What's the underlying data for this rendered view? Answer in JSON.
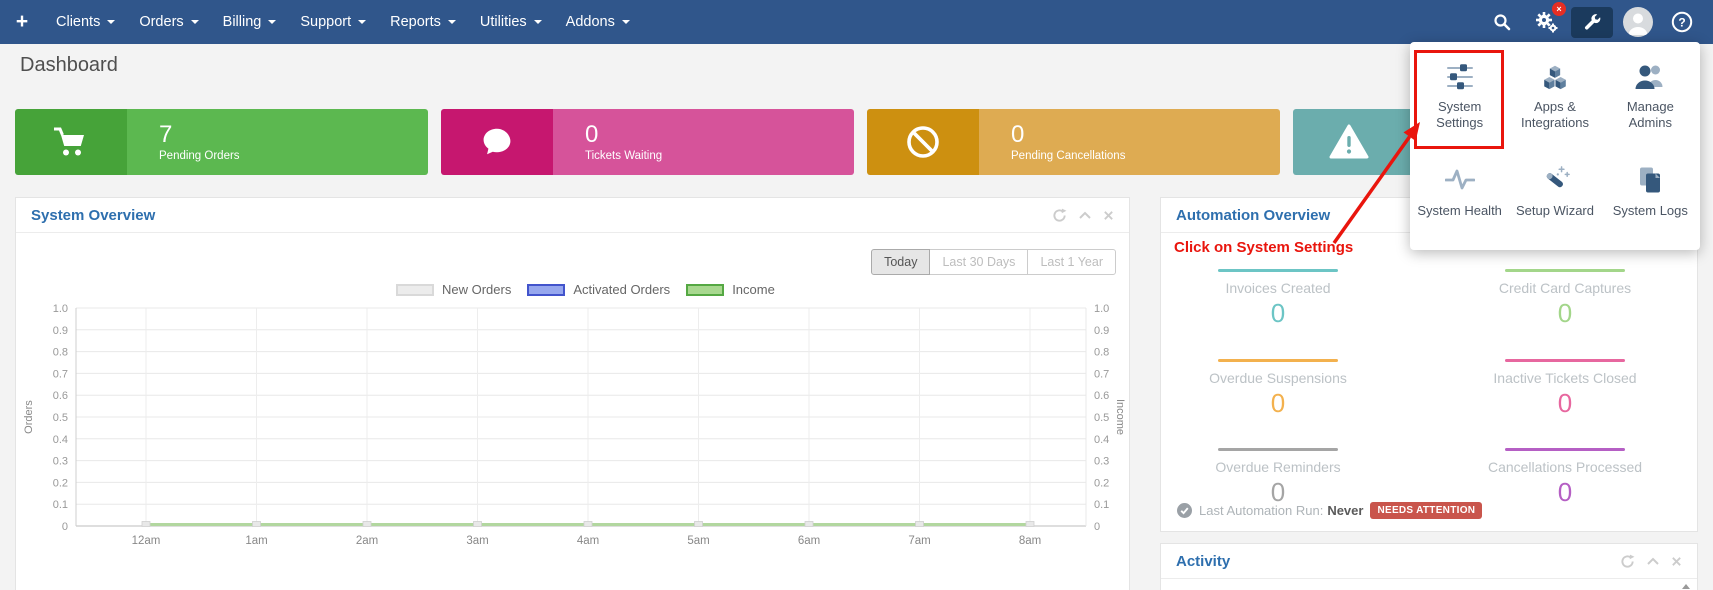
{
  "navbar": {
    "plus_label": "+",
    "items": [
      {
        "label": "Clients"
      },
      {
        "label": "Orders"
      },
      {
        "label": "Billing"
      },
      {
        "label": "Support"
      },
      {
        "label": "Reports"
      },
      {
        "label": "Utilities"
      },
      {
        "label": "Addons"
      }
    ],
    "icons": [
      "search-icon",
      "gears-error-icon",
      "wrench-icon",
      "user-avatar",
      "help-icon"
    ],
    "colors": {
      "bar": "#30568b",
      "active_item_bg": "#1b3a5d",
      "error_badge": "#e62e24"
    }
  },
  "page": {
    "title": "Dashboard"
  },
  "stat_cards": [
    {
      "icon": "shopping-cart-icon",
      "value": "7",
      "label": "Pending Orders",
      "color_dark": "#46a339",
      "color_light": "#5cb850"
    },
    {
      "icon": "comment-icon",
      "value": "0",
      "label": "Tickets Waiting",
      "color_dark": "#c6176f",
      "color_light": "#d6539a"
    },
    {
      "icon": "ban-icon",
      "value": "0",
      "label": "Pending Cancellations",
      "color_dark": "#cd9010",
      "color_light": "#deab52"
    },
    {
      "icon": "warning-triangle-icon",
      "value": "",
      "label": "",
      "color_dark": "#6badad",
      "color_light": "#6badad"
    }
  ],
  "system_overview": {
    "title": "System Overview",
    "active_range": "Today",
    "range_buttons": [
      {
        "label": "Today"
      },
      {
        "label": "Last 30 Days"
      },
      {
        "label": "Last 1 Year"
      }
    ]
  },
  "chart_data": {
    "type": "line",
    "title": "System Overview",
    "x_labels": [
      "12am",
      "1am",
      "2am",
      "3am",
      "4am",
      "5am",
      "6am",
      "7am",
      "8am"
    ],
    "series": [
      {
        "name": "New Orders",
        "values": [
          0,
          0,
          0,
          0,
          0,
          0,
          0,
          0,
          0
        ],
        "fill": "#ececec",
        "border": "#d9d9d9",
        "line": "#e3e3e3"
      },
      {
        "name": "Activated Orders",
        "values": [
          0,
          0,
          0,
          0,
          0,
          0,
          0,
          0,
          0
        ],
        "fill": "#96a7ee",
        "border": "#4254cc",
        "line": "#9dabea"
      },
      {
        "name": "Income",
        "values": [
          0,
          0,
          0,
          0,
          0,
          0,
          0,
          0,
          0
        ],
        "fill": "#a8d88f",
        "border": "#55a843",
        "line": "#b2d79f"
      }
    ],
    "ylim": [
      0,
      1
    ],
    "ytick_step": 0.1,
    "yticks_top_down": [
      "1.0",
      "0.9",
      "0.8",
      "0.7",
      "0.6",
      "0.5",
      "0.4",
      "0.3",
      "0.2",
      "0.1",
      "0"
    ],
    "left_axis_label": "Orders",
    "right_axis_label": "Income",
    "grid": true,
    "legend_position": "top"
  },
  "automation_overview": {
    "title": "Automation Overview",
    "stats": [
      {
        "label": "Invoices Created",
        "value": "0",
        "color": "#6cc5c5"
      },
      {
        "label": "Credit Card Captures",
        "value": "0",
        "color": "#a3d68a"
      },
      {
        "label": "Overdue Suspensions",
        "value": "0",
        "color": "#f3b14e"
      },
      {
        "label": "Inactive Tickets Closed",
        "value": "0",
        "color": "#e7679f"
      },
      {
        "label": "Overdue Reminders",
        "value": "0",
        "color": "#a5a5a5"
      },
      {
        "label": "Cancellations Processed",
        "value": "0",
        "color": "#b55fc4"
      }
    ],
    "last_run_label": "Last Automation Run:",
    "last_run_value": "Never",
    "badge": "NEEDS ATTENTION",
    "badge_color": "#c9554c"
  },
  "activity": {
    "title": "Activity"
  },
  "tools_menu": {
    "items": [
      {
        "label": "System Settings",
        "icon": "sliders-icon"
      },
      {
        "label": "Apps & Integrations",
        "icon": "cubes-icon"
      },
      {
        "label": "Manage Admins",
        "icon": "admins-icon"
      },
      {
        "label": "System Health",
        "icon": "heartbeat-icon"
      },
      {
        "label": "Setup Wizard",
        "icon": "magic-wand-icon"
      },
      {
        "label": "System Logs",
        "icon": "pages-icon"
      }
    ]
  },
  "annotation": {
    "text": "Click on System Settings",
    "color": "#e9150d"
  }
}
